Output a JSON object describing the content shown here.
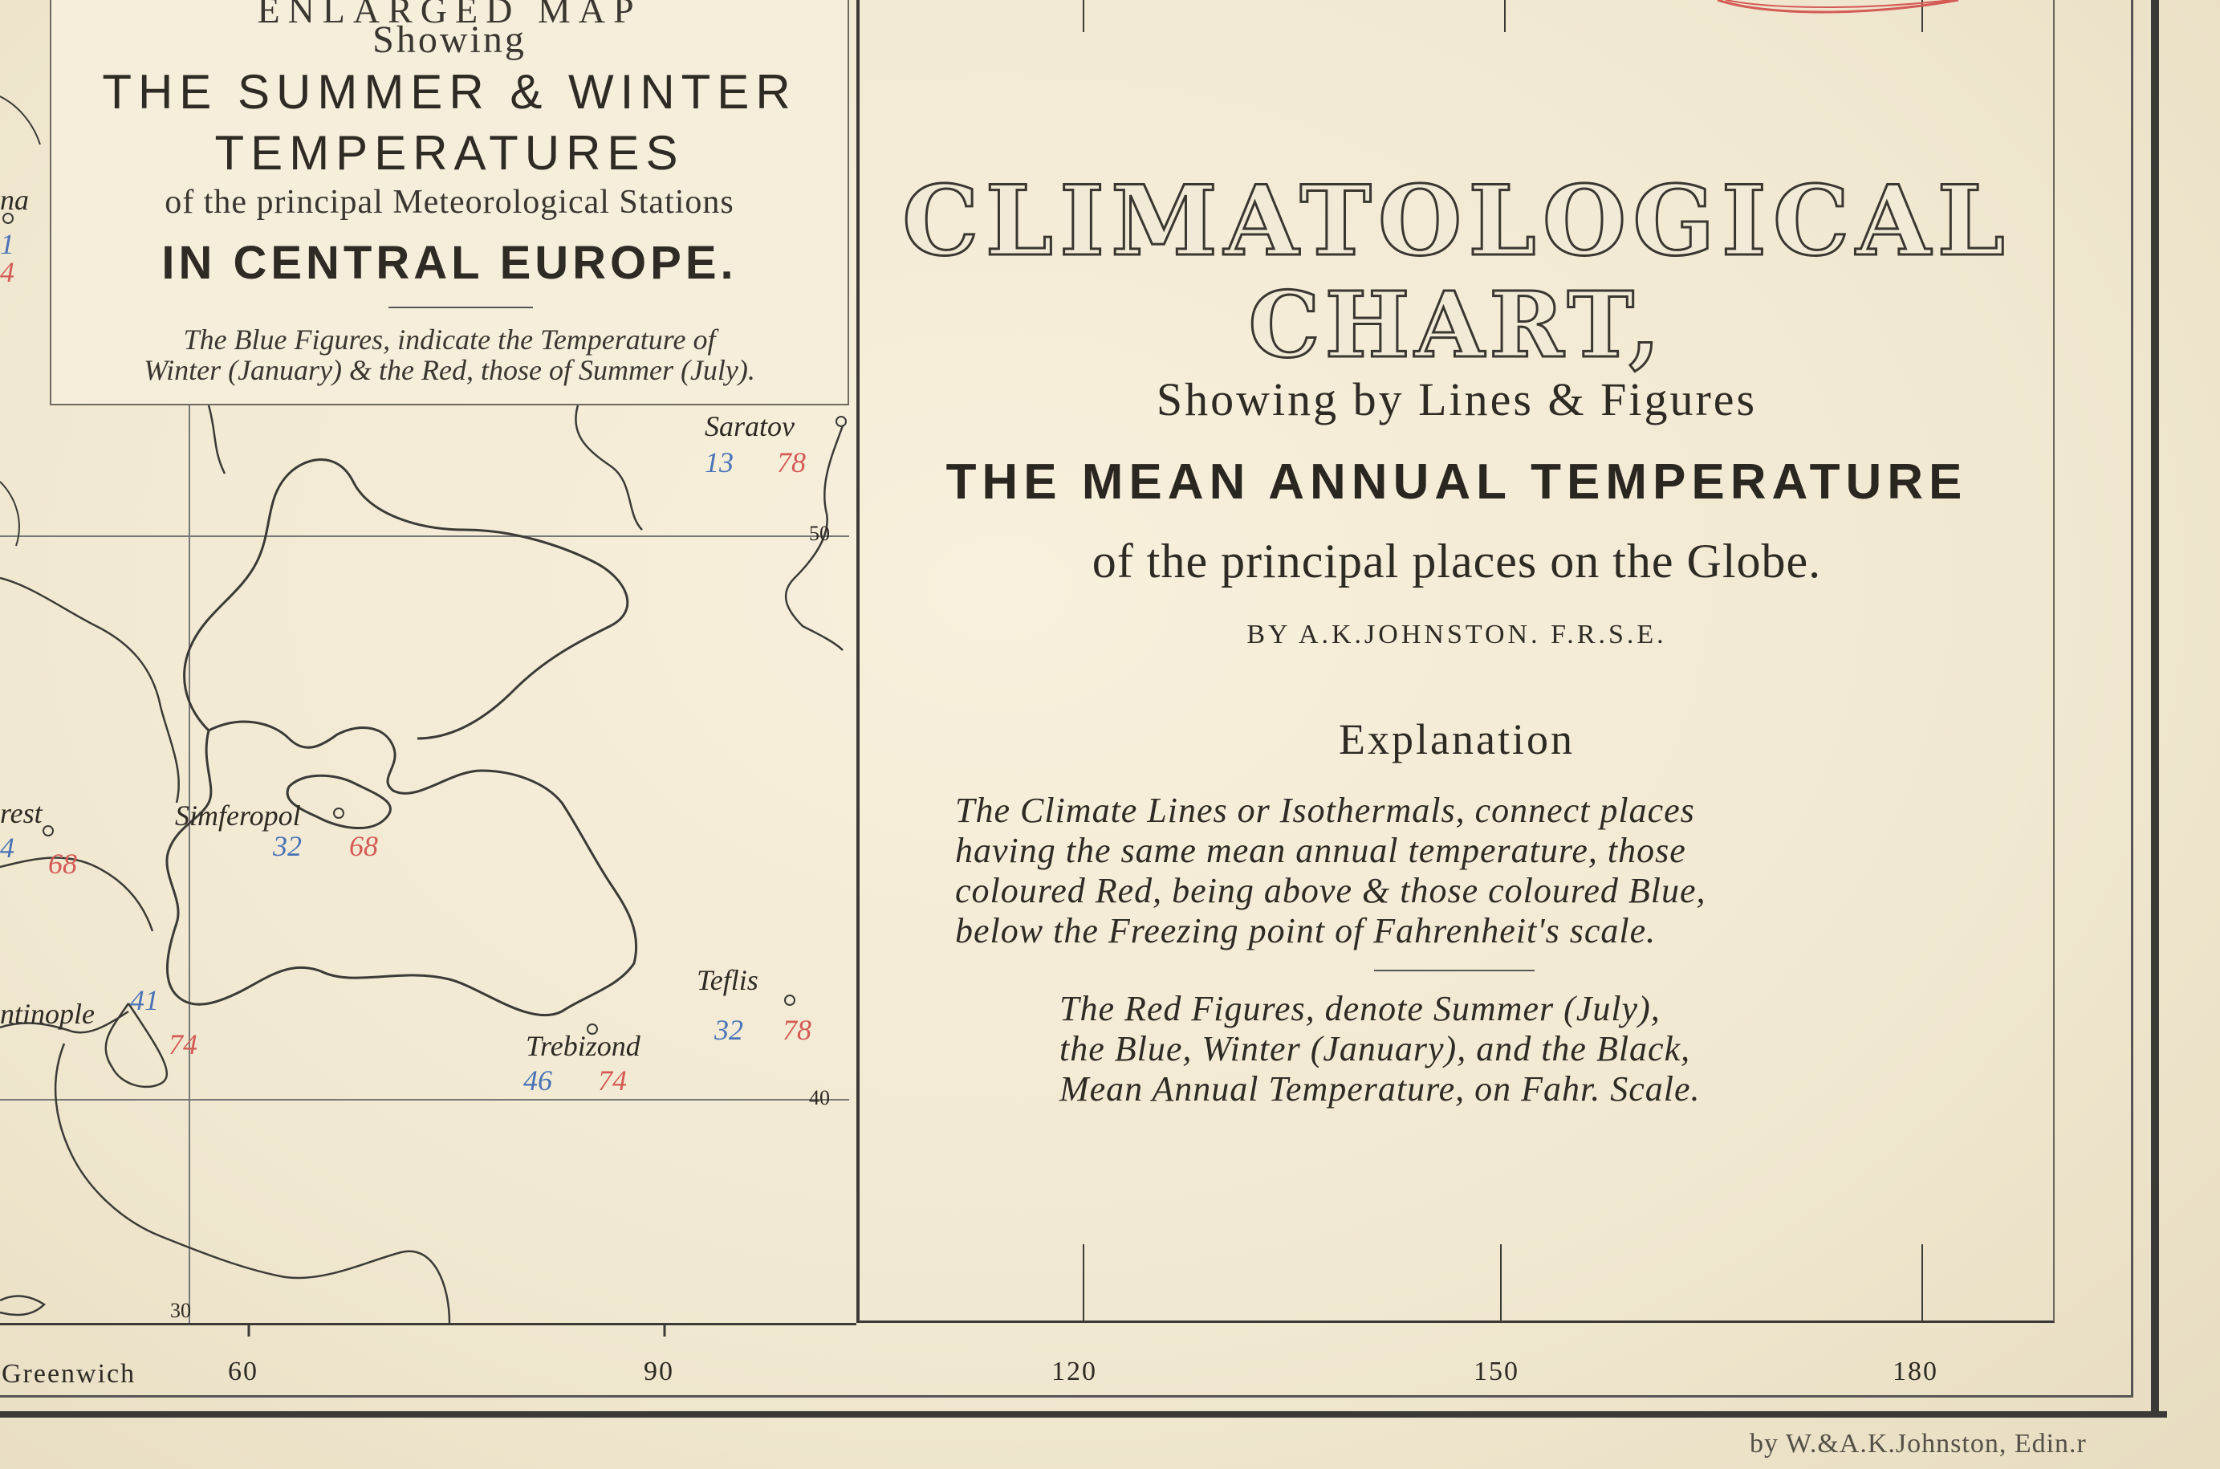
{
  "inset_box": {
    "enlarged": "ENLARGED MAP",
    "showing": "Showing",
    "line1": "THE SUMMER & WINTER",
    "line2": "TEMPERATURES",
    "line3": "of the principal Meteorological Stations",
    "line4": "IN CENTRAL EUROPE.",
    "note_line1": "The Blue Figures, indicate the Temperature of",
    "note_line2": "Winter (January) & the Red, those of Summer (July)."
  },
  "title_panel": {
    "title1": "CLIMATOLOGICAL",
    "title2": "CHART,",
    "subtitle1": "Showing by Lines & Figures",
    "subtitle2": "THE MEAN ANNUAL TEMPERATURE",
    "subtitle3": "of the principal places on the Globe.",
    "author": "BY A.K.JOHNSTON. F.R.S.E.",
    "explanation_heading": "Explanation",
    "explanation_lines": [
      "The Climate Lines or Isothermals, connect places",
      "having the same mean annual temperature, those",
      "coloured Red, being above & those coloured Blue,",
      "below the Freezing point of Fahrenheit's scale."
    ],
    "figures_lines": [
      "The Red Figures, denote Summer (July),",
      "the Blue, Winter (January), and the Black,",
      "Mean Annual Temperature, on Fahr. Scale."
    ]
  },
  "longitude_scale": {
    "greenwich": "Greenwich",
    "labels": [
      "60",
      "90",
      "120",
      "150",
      "180"
    ]
  },
  "inset_grid_labels": {
    "lat50": "50",
    "lat40": "40",
    "lon30": "30"
  },
  "stations": [
    {
      "name": "Saratov",
      "winter": "13",
      "summer": "78"
    },
    {
      "name": "Simferopol",
      "winter": "32",
      "summer": "68"
    },
    {
      "name": "Teflis",
      "winter": "32",
      "summer": "78"
    },
    {
      "name": "Trebizond",
      "winter": "46",
      "summer": "74"
    },
    {
      "name": "ntinople",
      "winter": "41",
      "summer": "74"
    },
    {
      "name": "rest",
      "winter": "4",
      "summer": "68"
    },
    {
      "name": "na",
      "winter": "1",
      "summer": "4"
    }
  ],
  "imprint": "by W.&A.K.Johnston, Edin.r",
  "colors": {
    "winter": "#4a73b8",
    "summer": "#d45a55",
    "ink": "#2e2a24",
    "paper": "#f3ecd8"
  }
}
